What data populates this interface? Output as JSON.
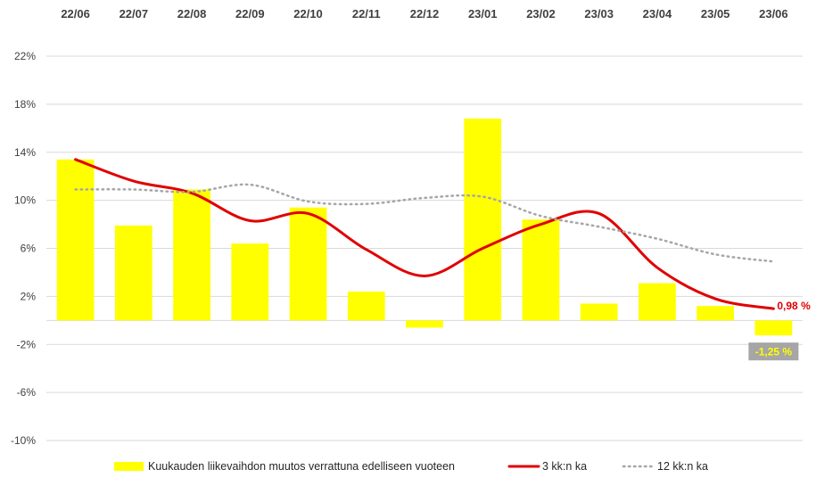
{
  "chart_data": {
    "type": "bar",
    "categories": [
      "22/06",
      "22/07",
      "22/08",
      "22/09",
      "22/10",
      "22/11",
      "22/12",
      "23/01",
      "23/02",
      "23/03",
      "23/04",
      "23/05",
      "23/06"
    ],
    "ylim": [
      -10,
      22
    ],
    "yticks": [
      22,
      18,
      14,
      10,
      6,
      2,
      -2,
      -6,
      -10
    ],
    "ytick_labels": [
      "22%",
      "18%",
      "14%",
      "10%",
      "6%",
      "2%",
      "-2%",
      "-6%",
      "-10%"
    ],
    "grid": true,
    "legend_position": "bottom",
    "series": [
      {
        "name": "Kuukauden liikevaihdon muutos verrattuna edelliseen vuoteen",
        "type": "bar",
        "color": "#ffff00",
        "values": [
          13.4,
          7.9,
          10.9,
          6.4,
          9.4,
          2.4,
          -0.6,
          16.8,
          8.4,
          1.4,
          3.1,
          1.2,
          -1.25
        ]
      },
      {
        "name": "3 kk:n ka",
        "type": "line",
        "style": "solid",
        "color": "#e00000",
        "values": [
          13.4,
          11.6,
          10.6,
          8.3,
          8.9,
          5.9,
          3.7,
          6.0,
          8.0,
          8.9,
          4.4,
          1.8,
          0.98
        ]
      },
      {
        "name": "12 kk:n ka",
        "type": "line",
        "style": "dotted",
        "color": "#a6a6a6",
        "values": [
          10.9,
          10.9,
          10.7,
          11.3,
          9.9,
          9.7,
          10.2,
          10.3,
          8.7,
          7.8,
          6.8,
          5.5,
          4.9
        ]
      }
    ],
    "annotations": [
      {
        "series": 1,
        "index": 12,
        "text": "0,98 %",
        "color": "#e00000"
      },
      {
        "series": 0,
        "index": 12,
        "text": "-1,25 %",
        "color": "#ffff00",
        "background": "#a6a6a6"
      }
    ]
  }
}
